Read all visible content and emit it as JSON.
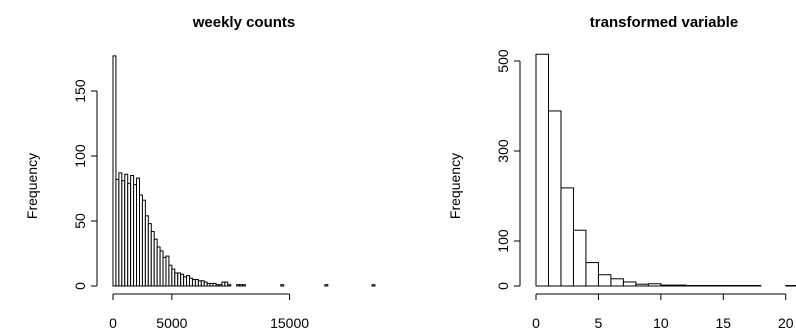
{
  "chart_data": [
    {
      "type": "bar",
      "title": "weekly counts",
      "xlabel": "",
      "ylabel": "Frequency",
      "xlim": [
        0,
        22000
      ],
      "ylim": [
        0,
        180
      ],
      "x_ticks": [
        0,
        5000,
        15000
      ],
      "y_ticks": [
        0,
        50,
        100,
        150
      ],
      "bin_width": 250,
      "bin_start": 0,
      "values": [
        177,
        82,
        87,
        81,
        86,
        79,
        85,
        78,
        83,
        70,
        66,
        54,
        48,
        42,
        36,
        30,
        27,
        22,
        23,
        16,
        13,
        10,
        10,
        9,
        7,
        8,
        6,
        5,
        5,
        4,
        4,
        3,
        2,
        2,
        2,
        1,
        1,
        3,
        3,
        1,
        0,
        0,
        1,
        1,
        1,
        0,
        0,
        0,
        0,
        0,
        0,
        0,
        0,
        0,
        0,
        0,
        0,
        1,
        0,
        0,
        0,
        0,
        0,
        0,
        0,
        0,
        0,
        0,
        0,
        0,
        0,
        0,
        1,
        0,
        0,
        0,
        0,
        0,
        0,
        0,
        0,
        0,
        0,
        0,
        0,
        0,
        0,
        0,
        1
      ]
    },
    {
      "type": "bar",
      "title": "transformed variable",
      "xlabel": "",
      "ylabel": "Frequency",
      "xlim": [
        0,
        20.5
      ],
      "ylim": [
        0,
        520
      ],
      "x_ticks": [
        0,
        5,
        10,
        15,
        20
      ],
      "y_ticks": [
        0,
        100,
        300,
        500
      ],
      "bin_width": 1,
      "bin_start": 0,
      "values": [
        515,
        389,
        218,
        124,
        52,
        25,
        16,
        9,
        4,
        5,
        2,
        2,
        1,
        1,
        1,
        1,
        1,
        1,
        0,
        0,
        1
      ]
    }
  ]
}
